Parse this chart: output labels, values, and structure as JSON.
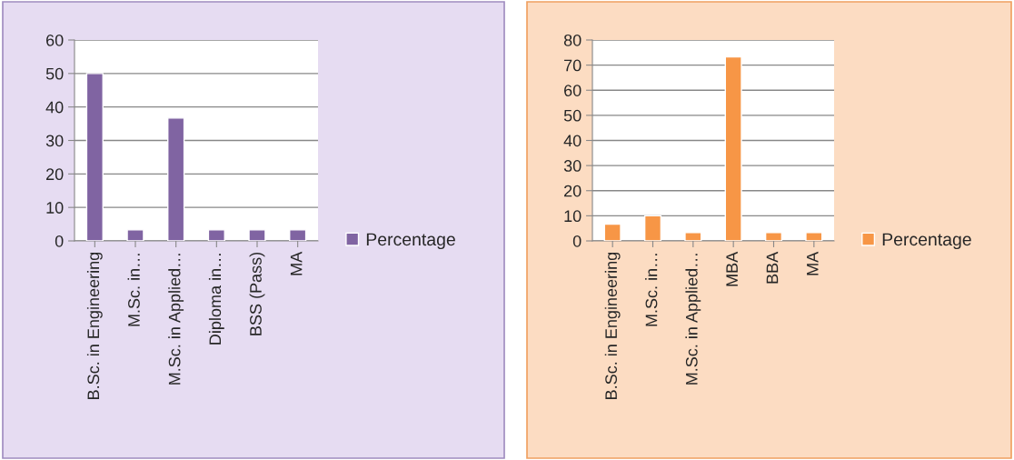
{
  "chart_data": [
    {
      "type": "bar",
      "categories": [
        "B.Sc. in Engineering",
        "M.Sc. in…",
        "M.Sc. in Applied…",
        "Diploma in…",
        "BSS (Pass)",
        "MA"
      ],
      "series": [
        {
          "name": "Percentage",
          "color": "#8064a2",
          "values": [
            50,
            3.3,
            36.7,
            3.3,
            3.3,
            3.3
          ]
        }
      ],
      "ylim": [
        0,
        60
      ],
      "yticks": [
        0,
        10,
        20,
        30,
        40,
        50,
        60
      ],
      "grid": "y",
      "legend": "right"
    },
    {
      "type": "bar",
      "categories": [
        "B.Sc. in Engineering",
        "M.Sc. in…",
        "M.Sc. in Applied…",
        "MBA",
        "BBA",
        "MA"
      ],
      "series": [
        {
          "name": "Percentage",
          "color": "#f79646",
          "values": [
            6.7,
            10,
            3.3,
            73.3,
            3.3,
            3.3
          ]
        }
      ],
      "ylim": [
        0,
        80
      ],
      "yticks": [
        0,
        10,
        20,
        30,
        40,
        50,
        60,
        70,
        80
      ],
      "grid": "y",
      "legend": "right"
    }
  ]
}
